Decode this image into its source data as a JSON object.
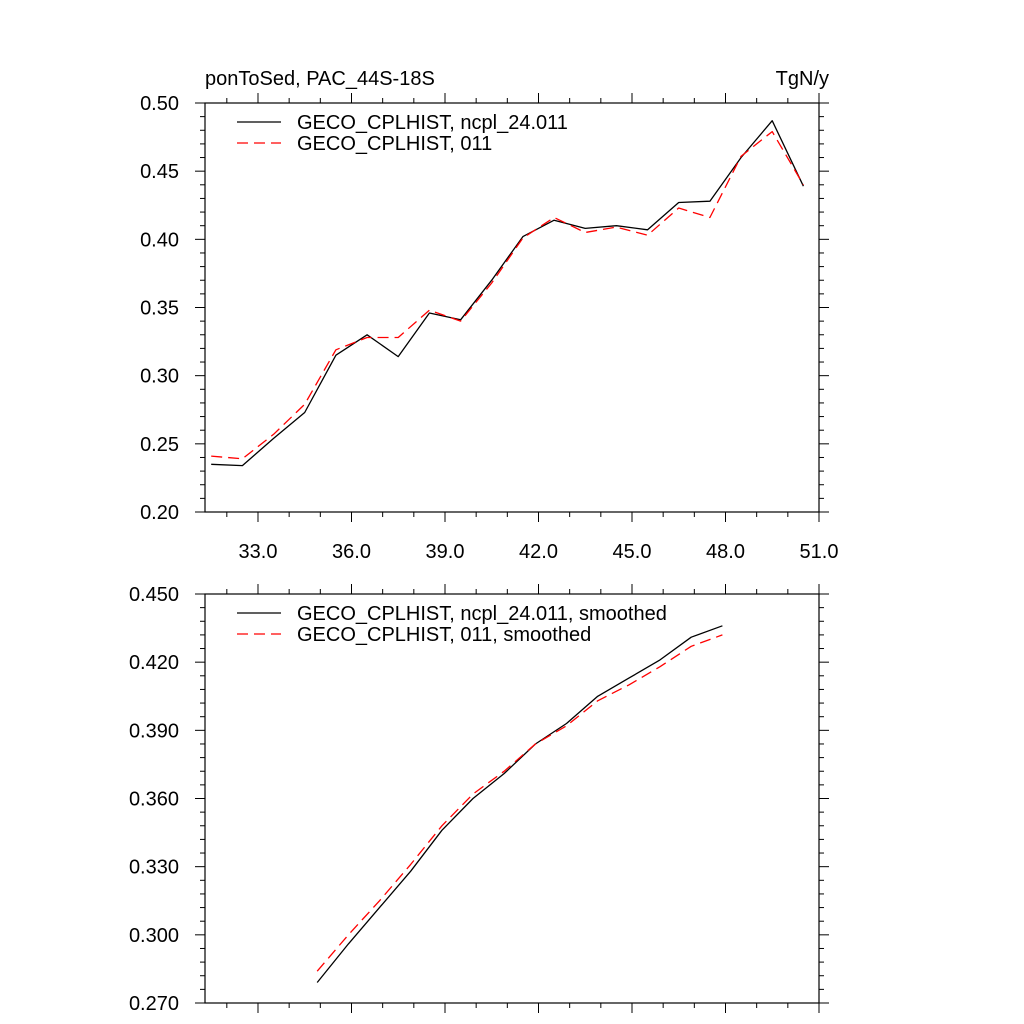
{
  "chart_data": [
    {
      "type": "line",
      "title_left": "ponToSed, PAC_44S-18S",
      "title_right": "TgN/y",
      "xlim": [
        31.3,
        51.0
      ],
      "ylim": [
        0.2,
        0.5
      ],
      "xticks": [
        33.0,
        36.0,
        39.0,
        42.0,
        45.0,
        48.0,
        51.0
      ],
      "xtick_labels": [
        "33.0",
        "36.0",
        "39.0",
        "42.0",
        "45.0",
        "48.0",
        "51.0"
      ],
      "yticks": [
        0.2,
        0.25,
        0.3,
        0.35,
        0.4,
        0.45,
        0.5
      ],
      "ytick_labels": [
        "0.20",
        "0.25",
        "0.30",
        "0.35",
        "0.40",
        "0.45",
        "0.50"
      ],
      "legend_position": "top-left",
      "series": [
        {
          "name": "GECO_CPLHIST, ncpl_24.011",
          "color": "#000000",
          "dash": "solid",
          "x": [
            31.5,
            32.5,
            33.5,
            34.5,
            35.5,
            36.5,
            37.5,
            38.5,
            39.5,
            40.5,
            41.5,
            42.5,
            43.5,
            44.5,
            45.5,
            46.5,
            47.5,
            48.5,
            49.5,
            50.5
          ],
          "y": [
            0.235,
            0.234,
            0.254,
            0.273,
            0.315,
            0.33,
            0.314,
            0.346,
            0.341,
            0.37,
            0.402,
            0.414,
            0.408,
            0.41,
            0.407,
            0.427,
            0.428,
            0.46,
            0.487,
            0.439
          ]
        },
        {
          "name": "GECO_CPLHIST, 011",
          "color": "#ff0000",
          "dash": "dashed",
          "x": [
            31.5,
            32.5,
            33.5,
            34.5,
            35.5,
            36.5,
            37.5,
            38.5,
            39.5,
            40.5,
            41.5,
            42.5,
            43.5,
            44.5,
            45.5,
            46.5,
            47.5,
            48.5,
            49.5,
            50.5
          ],
          "y": [
            0.241,
            0.239,
            0.257,
            0.279,
            0.319,
            0.328,
            0.328,
            0.348,
            0.34,
            0.368,
            0.401,
            0.416,
            0.405,
            0.409,
            0.403,
            0.423,
            0.416,
            0.461,
            0.479,
            0.44
          ]
        }
      ]
    },
    {
      "type": "line",
      "xlim": [
        31.3,
        51.0
      ],
      "ylim": [
        0.27,
        0.45
      ],
      "xticks": [
        33.0,
        36.0,
        39.0,
        42.0,
        45.0,
        48.0,
        51.0
      ],
      "yticks": [
        0.27,
        0.3,
        0.33,
        0.36,
        0.39,
        0.42,
        0.45
      ],
      "ytick_labels": [
        "0.270",
        "0.300",
        "0.330",
        "0.360",
        "0.390",
        "0.420",
        "0.450"
      ],
      "legend_position": "top-left",
      "series": [
        {
          "name": "GECO_CPLHIST, ncpl_24.011, smoothed",
          "color": "#000000",
          "dash": "solid",
          "x": [
            34.9,
            35.9,
            36.9,
            37.9,
            38.9,
            39.9,
            40.9,
            41.9,
            42.9,
            43.9,
            44.9,
            45.9,
            46.9,
            47.9
          ],
          "y": [
            0.279,
            0.296,
            0.312,
            0.328,
            0.346,
            0.36,
            0.371,
            0.384,
            0.393,
            0.405,
            0.413,
            0.421,
            0.431,
            0.436
          ]
        },
        {
          "name": "GECO_CPLHIST, 011, smoothed",
          "color": "#ff0000",
          "dash": "dashed",
          "x": [
            34.9,
            35.9,
            36.9,
            37.9,
            38.9,
            39.9,
            40.9,
            41.9,
            42.9,
            43.9,
            44.9,
            45.9,
            46.9,
            47.9
          ],
          "y": [
            0.284,
            0.3,
            0.315,
            0.331,
            0.348,
            0.362,
            0.372,
            0.384,
            0.392,
            0.403,
            0.41,
            0.418,
            0.427,
            0.432
          ]
        }
      ]
    }
  ]
}
